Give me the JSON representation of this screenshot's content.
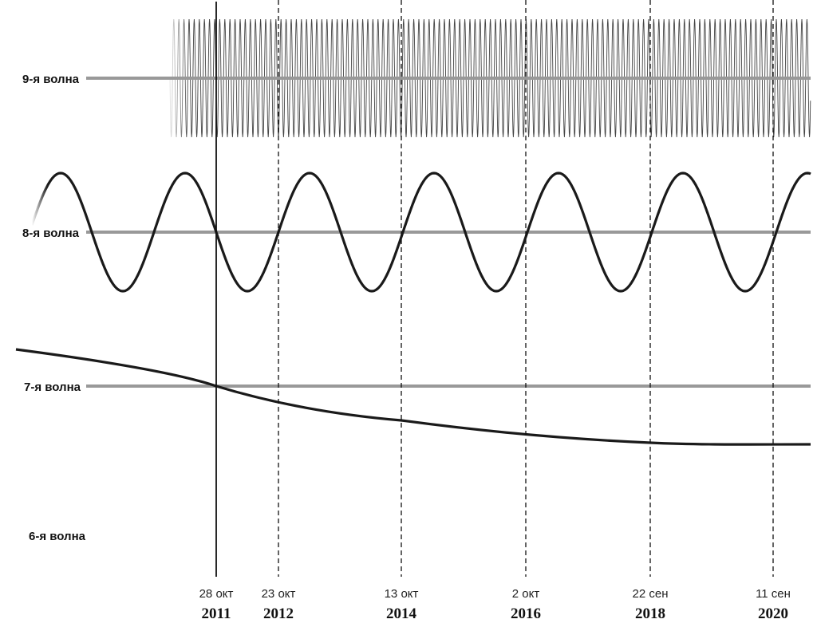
{
  "waves": [
    {
      "id": "wave9",
      "label": "9-я волна"
    },
    {
      "id": "wave8",
      "label": "8-я волна"
    },
    {
      "id": "wave7",
      "label": "7-я волна"
    },
    {
      "id": "wave6",
      "label": "6-я волна"
    }
  ],
  "markers": [
    {
      "date": "28 окт",
      "year": "2011",
      "style": "solid"
    },
    {
      "date": "23 окт",
      "year": "2012",
      "style": "dashed"
    },
    {
      "date": "13 окт",
      "year": "2014",
      "style": "dashed"
    },
    {
      "date": "2 окт",
      "year": "2016",
      "style": "dashed"
    },
    {
      "date": "22 сен",
      "year": "2018",
      "style": "dashed"
    },
    {
      "date": "11 сен",
      "year": "2020",
      "style": "dashed"
    }
  ],
  "colors": {
    "baseline": "#999999",
    "curve": "#1a1a1a",
    "oscillation": "#555555",
    "marker": "#111111"
  }
}
